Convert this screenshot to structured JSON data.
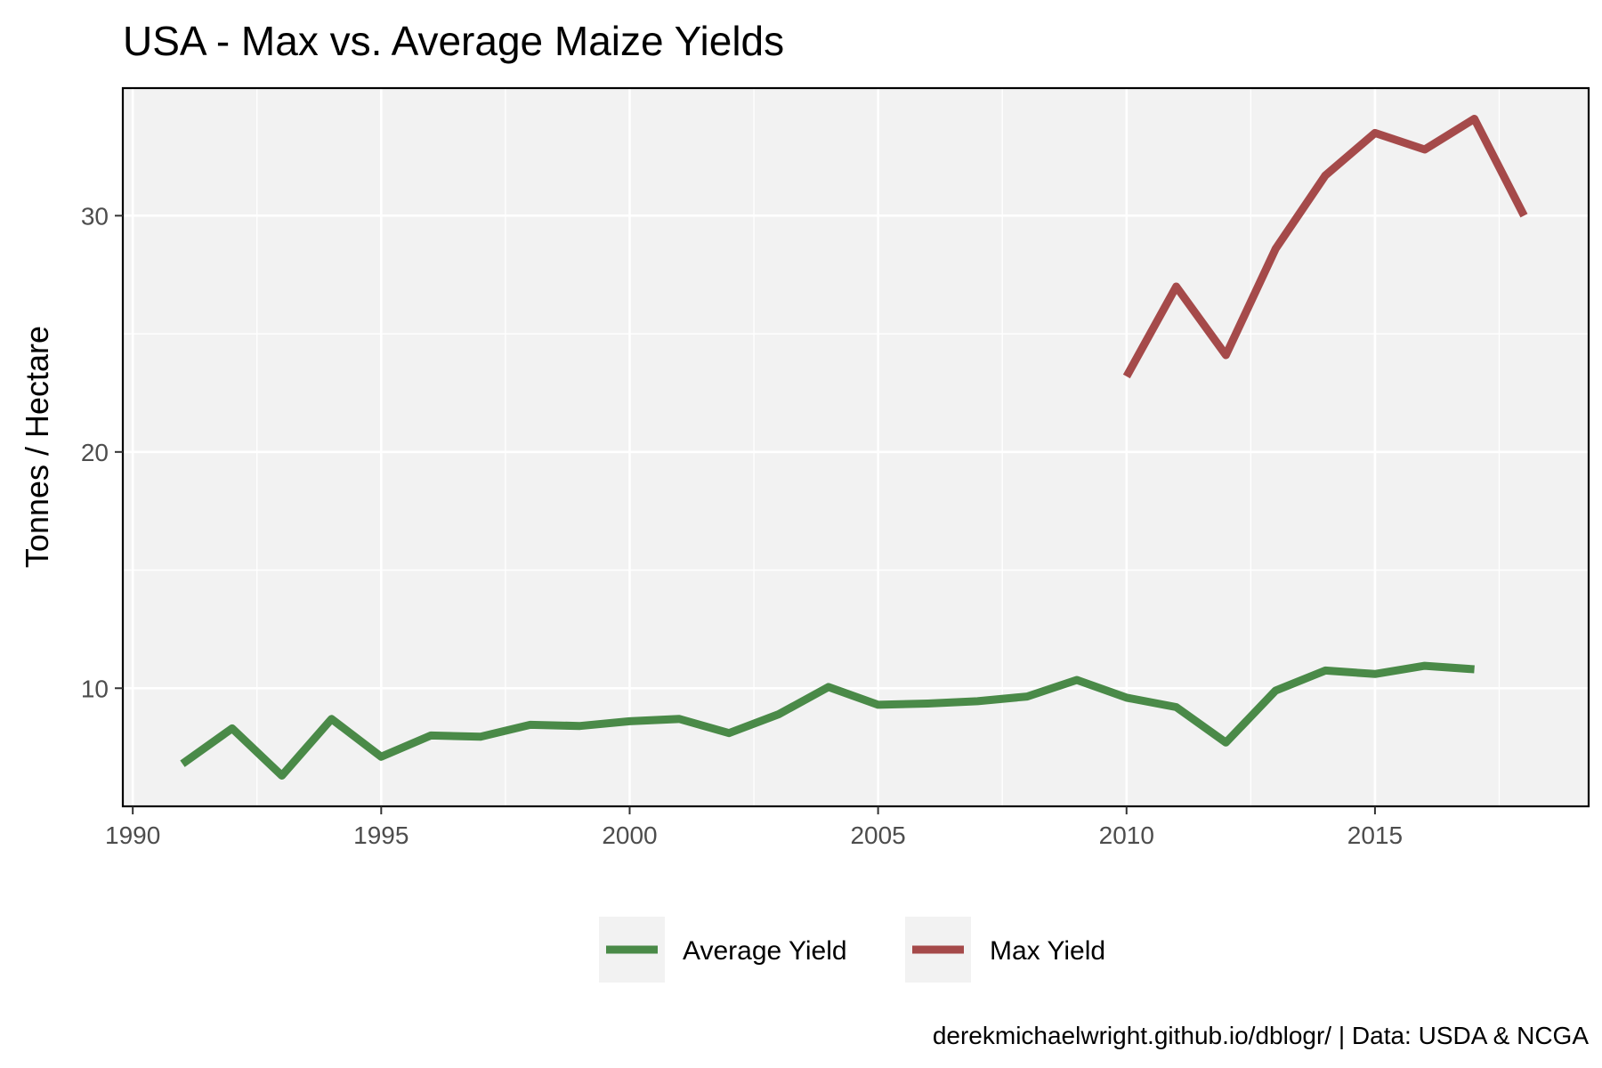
{
  "chart_data": {
    "type": "line",
    "title": "USA - Max vs. Average Maize Yields",
    "xlabel": "",
    "ylabel": "Tonnes / Hectare",
    "caption": "derekmichaelwright.github.io/dblogr/ | Data: USDA & NCGA",
    "xlim": [
      1989.8,
      2019.3
    ],
    "ylim": [
      5,
      35.4
    ],
    "x_ticks": [
      1990,
      1995,
      2000,
      2005,
      2010,
      2015
    ],
    "y_ticks": [
      10,
      20,
      30
    ],
    "grid": true,
    "legend_position": "bottom",
    "series": [
      {
        "name": "Average Yield",
        "color": "#4a8a48",
        "x": [
          1991,
          1992,
          1993,
          1994,
          1995,
          1996,
          1997,
          1998,
          1999,
          2000,
          2001,
          2002,
          2003,
          2004,
          2005,
          2006,
          2007,
          2008,
          2009,
          2010,
          2011,
          2012,
          2013,
          2014,
          2015,
          2016,
          2017
        ],
        "y": [
          6.8,
          8.3,
          6.3,
          8.7,
          7.1,
          8.0,
          7.95,
          8.45,
          8.4,
          8.6,
          8.7,
          8.1,
          8.9,
          10.05,
          9.3,
          9.35,
          9.45,
          9.65,
          10.35,
          9.6,
          9.2,
          7.7,
          9.9,
          10.75,
          10.6,
          10.95,
          10.8
        ]
      },
      {
        "name": "Max Yield",
        "color": "#a54a4a",
        "x": [
          2010,
          2011,
          2012,
          2013,
          2014,
          2015,
          2016,
          2017,
          2018
        ],
        "y": [
          23.2,
          27.0,
          24.1,
          28.6,
          31.7,
          33.5,
          32.8,
          34.1,
          30.0
        ]
      }
    ]
  }
}
